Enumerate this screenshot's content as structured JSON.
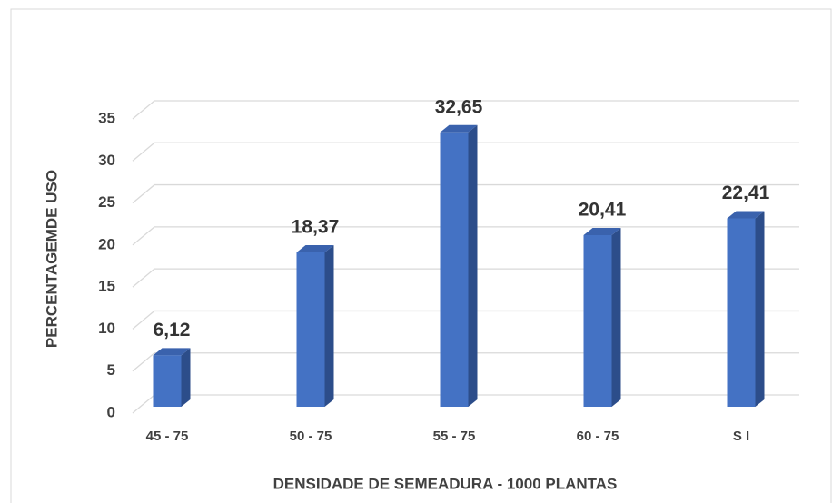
{
  "chart_data": {
    "type": "bar3d",
    "xlabel": "DENSIDADE DE SEMEADURA - 1000 PLANTAS",
    "ylabel": "PERCENTAGEMDE USO",
    "categories": [
      "45 - 75",
      "50 - 75",
      "55 - 75",
      "60 - 75",
      "S I"
    ],
    "values": [
      6.12,
      18.37,
      32.65,
      20.41,
      22.41
    ],
    "value_labels": [
      "6,12",
      "18,37",
      "32,65",
      "20,41",
      "22,41"
    ],
    "color": "#4472c4",
    "ylim": [
      0,
      35
    ],
    "yticks": [
      0,
      5,
      10,
      15,
      20,
      25,
      30,
      35
    ],
    "grid": true
  }
}
